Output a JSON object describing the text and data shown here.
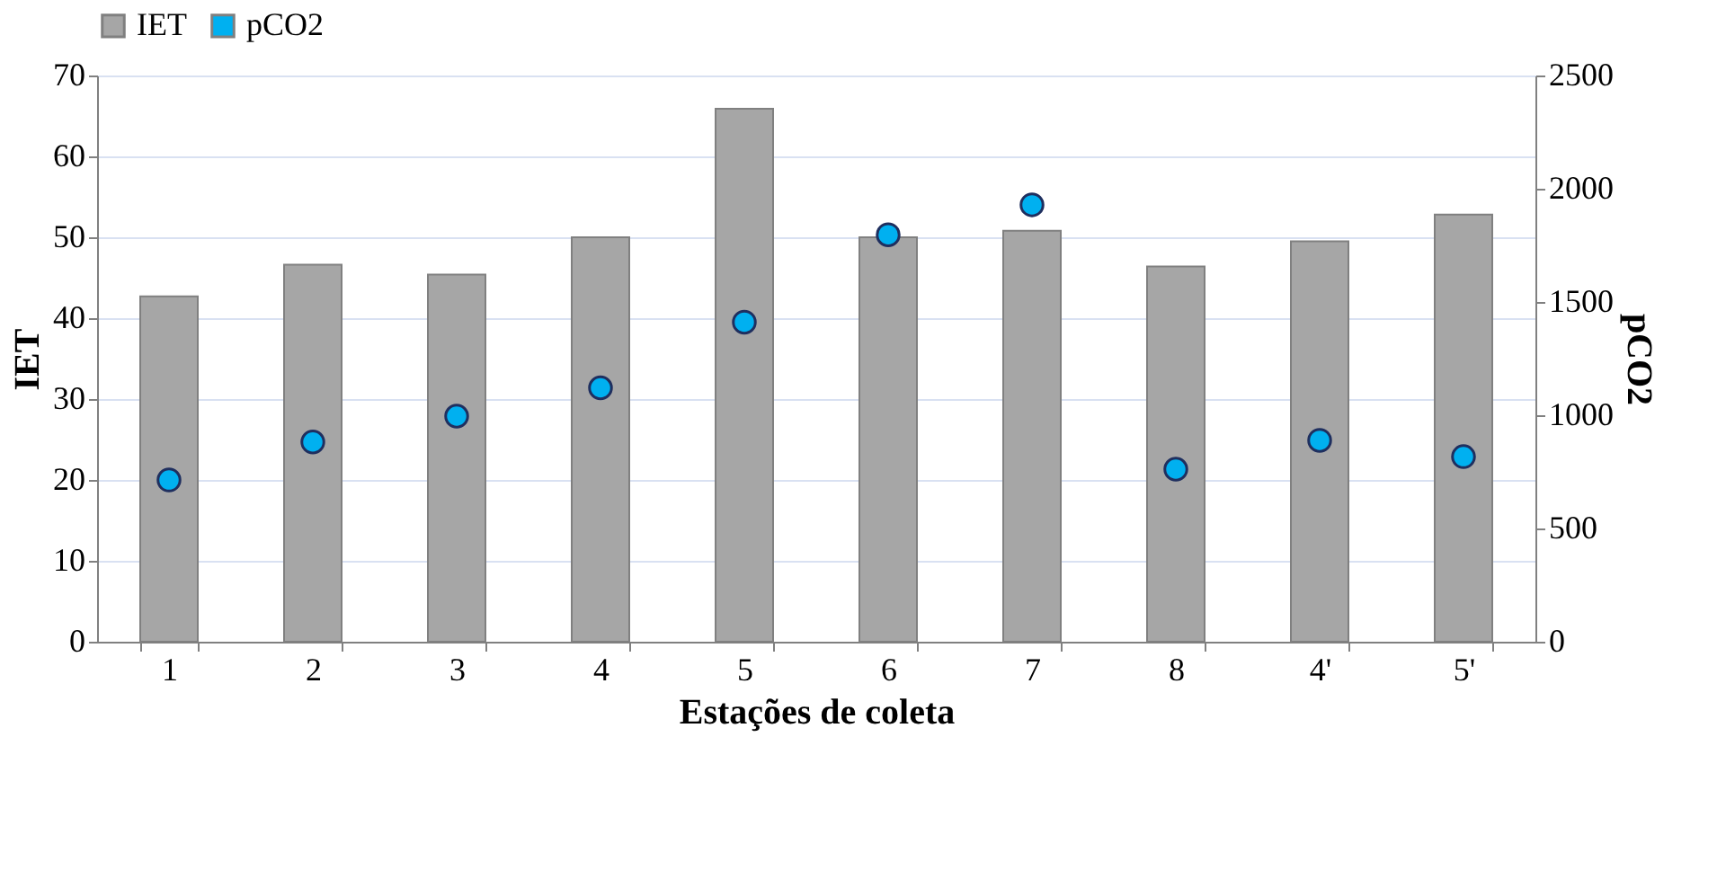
{
  "chart_data": {
    "type": "bar",
    "xlabel": "Estações de coleta",
    "ylabel": "IET",
    "y2label": "pCO2",
    "categories": [
      "1",
      "2",
      "3",
      "4",
      "5",
      "6",
      "7",
      "8",
      "4'",
      "5'"
    ],
    "series": [
      {
        "name": "IET",
        "color": "#a6a6a6",
        "values": [
          42.7,
          46.6,
          45.4,
          50,
          65.9,
          50,
          50.8,
          46.4,
          49.5,
          52.8
        ]
      },
      {
        "name": "pCO2",
        "type": "scatter",
        "axis": "y2",
        "color": "#00b0f0",
        "values": [
          714,
          882,
          996,
          1121,
          1411,
          1797,
          1929,
          762,
          889,
          817
        ]
      }
    ],
    "ylim": [
      0,
      70
    ],
    "yticks": [
      0,
      10,
      20,
      30,
      40,
      50,
      60,
      70
    ],
    "y2lim": [
      0,
      2500
    ],
    "y2ticks": [
      0,
      500,
      1000,
      1500,
      2000,
      2500
    ],
    "grid": "y",
    "legend": "top",
    "marker": "circle"
  }
}
